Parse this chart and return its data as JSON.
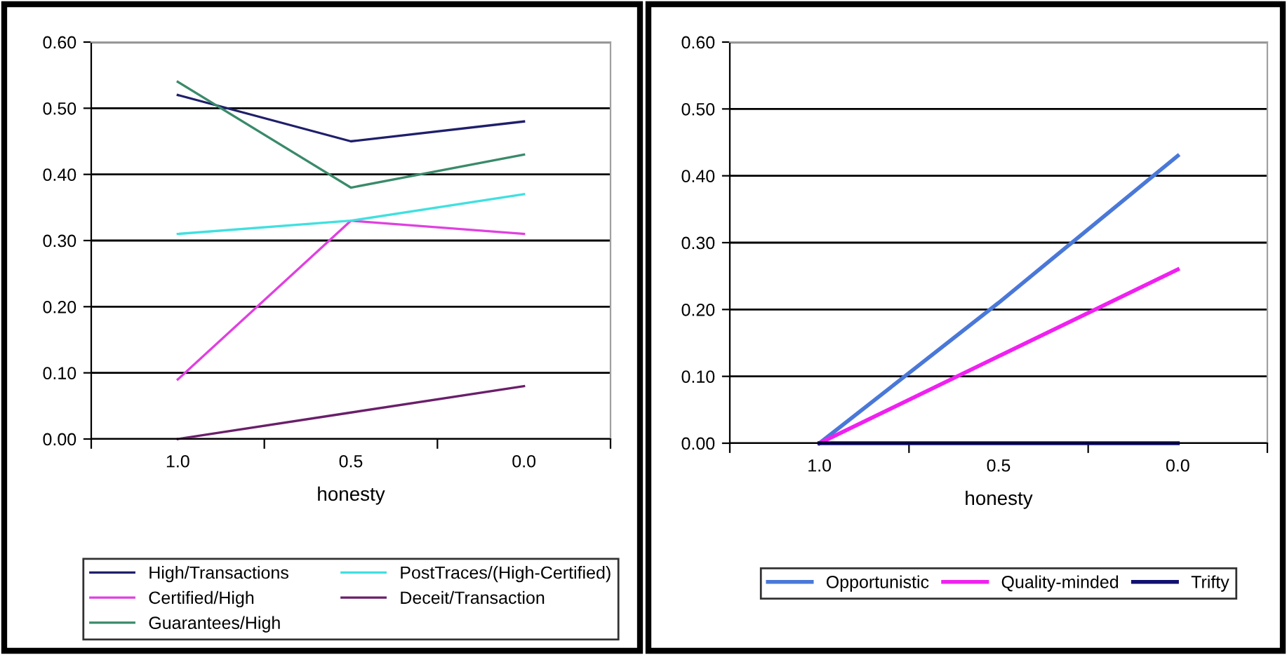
{
  "chart_data": [
    {
      "type": "line",
      "xlabel": "honesty",
      "categories": [
        "1.0",
        "0.5",
        "0.0"
      ],
      "ylim": [
        0,
        0.6
      ],
      "yticks": [
        {
          "value": 0,
          "label": "0.00"
        },
        {
          "value": 0.1,
          "label": "0.10"
        },
        {
          "value": 0.2,
          "label": "0.20"
        },
        {
          "value": 0.3,
          "label": "0.30"
        },
        {
          "value": 0.4,
          "label": "0.40"
        },
        {
          "value": 0.5,
          "label": "0.50"
        },
        {
          "value": 0.6,
          "label": "0.60"
        }
      ],
      "grid": "y",
      "legend": "bottom",
      "marker": "none",
      "line_style": "solid",
      "series": [
        {
          "name": "High/Transactions",
          "color": "#1f1f6b",
          "values": [
            0.52,
            0.45,
            0.48
          ]
        },
        {
          "name": "Certified/High",
          "color": "#e040e0",
          "values": [
            0.09,
            0.33,
            0.31
          ]
        },
        {
          "name": "Guarantees/High",
          "color": "#3a8a6a",
          "values": [
            0.54,
            0.38,
            0.43
          ]
        },
        {
          "name": "PostTraces/(High-Certified)",
          "color": "#40e0e0",
          "values": [
            0.31,
            0.33,
            0.37
          ]
        },
        {
          "name": "Deceit/Transaction",
          "color": "#6a1f6a",
          "values": [
            0.0,
            0.04,
            0.08
          ]
        }
      ]
    },
    {
      "type": "line",
      "xlabel": "honesty",
      "categories": [
        "1.0",
        "0.5",
        "0.0"
      ],
      "ylim": [
        0,
        0.6
      ],
      "yticks": [
        {
          "value": 0,
          "label": "0.00"
        },
        {
          "value": 0.1,
          "label": "0.10"
        },
        {
          "value": 0.2,
          "label": "0.20"
        },
        {
          "value": 0.3,
          "label": "0.30"
        },
        {
          "value": 0.4,
          "label": "0.40"
        },
        {
          "value": 0.5,
          "label": "0.50"
        },
        {
          "value": 0.6,
          "label": "0.60"
        }
      ],
      "grid": "y",
      "legend": "bottom",
      "marker": "none",
      "line_style": "solid",
      "series": [
        {
          "name": "Opportunistic",
          "color": "#4a78d8",
          "values": [
            0.0,
            0.21,
            0.43
          ]
        },
        {
          "name": "Quality-minded",
          "color": "#f020f0",
          "values": [
            0.0,
            0.13,
            0.26
          ]
        },
        {
          "name": "Trifty",
          "color": "#101070",
          "values": [
            0.0,
            0.0,
            0.0
          ]
        }
      ]
    }
  ]
}
